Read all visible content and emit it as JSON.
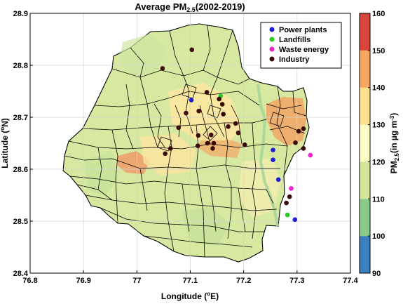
{
  "chart_data": {
    "type": "map",
    "title_main": "Average PM",
    "title_sub": "2.5",
    "title_rest": "(2002-2019)",
    "xlabel_main": "Longitude (",
    "xlabel_sup": "o",
    "xlabel_rest": "E)",
    "ylabel_main": "Latitude (",
    "ylabel_sup": "o",
    "ylabel_rest": "N)",
    "xlim": [
      76.8,
      77.4
    ],
    "ylim": [
      28.4,
      28.9
    ],
    "xticks": [
      "76.8",
      "76.9",
      "77",
      "77.1",
      "77.2",
      "77.3",
      "77.4"
    ],
    "yticks": [
      "28.4",
      "28.5",
      "28.6",
      "28.7",
      "28.8",
      "28.9"
    ],
    "grid": true,
    "colorbar": {
      "label_main": "PM",
      "label_sub": "2.5",
      "label_rest": "(in µg m",
      "label_sup": "-3",
      "label_end": ")",
      "ticks": [
        "90",
        "100",
        "110",
        "120",
        "130",
        "140",
        "150",
        "160"
      ],
      "colors": [
        "#3a80bd",
        "#8acb8b",
        "#d2e69a",
        "#fcfcc4",
        "#fde08c",
        "#f7a560",
        "#d8453d"
      ]
    },
    "legend": {
      "placement": "top-right",
      "entries": [
        {
          "label": "Power plants",
          "color": "#1f1fd9"
        },
        {
          "label": "Landfills",
          "color": "#22cc22"
        },
        {
          "label": "Waste energy",
          "color": "#ee22cc"
        },
        {
          "label": "Industry",
          "color": "#3b0a0a"
        }
      ]
    },
    "series": [
      {
        "category": "Power plants",
        "points": [
          [
            77.102,
            28.733
          ],
          [
            77.255,
            28.637
          ],
          [
            77.255,
            28.618
          ],
          [
            77.265,
            28.58
          ],
          [
            77.296,
            28.503
          ]
        ]
      },
      {
        "category": "Landfills",
        "points": [
          [
            77.157,
            28.741
          ],
          [
            77.282,
            28.512
          ]
        ]
      },
      {
        "category": "Waste energy",
        "points": [
          [
            77.289,
            28.563
          ],
          [
            77.325,
            28.627
          ]
        ]
      },
      {
        "category": "Industry",
        "points": [
          [
            77.103,
            28.83
          ],
          [
            77.048,
            28.794
          ],
          [
            77.116,
            28.712
          ],
          [
            77.131,
            28.748
          ],
          [
            77.092,
            28.708
          ],
          [
            77.078,
            28.68
          ],
          [
            77.115,
            28.665
          ],
          [
            77.139,
            28.666
          ],
          [
            77.154,
            28.735
          ],
          [
            77.16,
            28.725
          ],
          [
            77.162,
            28.706
          ],
          [
            77.171,
            28.682
          ],
          [
            77.185,
            28.688
          ],
          [
            77.202,
            28.647
          ],
          [
            77.19,
            28.67
          ],
          [
            77.144,
            28.65
          ],
          [
            77.142,
            28.64
          ],
          [
            77.132,
            28.65
          ],
          [
            77.114,
            28.645
          ],
          [
            77.063,
            28.64
          ],
          [
            77.053,
            28.63
          ],
          [
            77.303,
            28.673
          ],
          [
            77.312,
            28.678
          ],
          [
            77.297,
            28.651
          ],
          [
            77.312,
            28.64
          ],
          [
            77.286,
            28.547
          ],
          [
            77.28,
            28.535
          ]
        ]
      }
    ]
  }
}
